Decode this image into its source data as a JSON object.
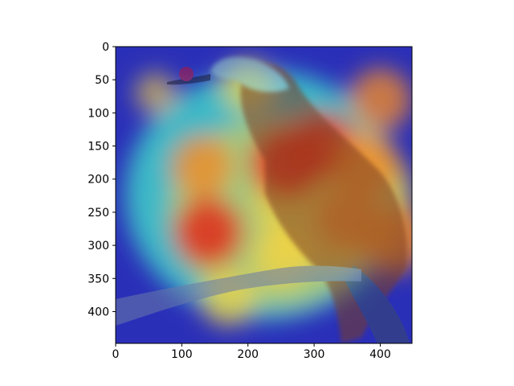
{
  "chart_data": {
    "type": "heatmap",
    "title": "",
    "xlabel": "",
    "ylabel": "",
    "xlim": [
      0,
      448
    ],
    "ylim": [
      448,
      0
    ],
    "x_ticks": [
      "0",
      "100",
      "200",
      "300",
      "400"
    ],
    "y_ticks": [
      "0",
      "50",
      "100",
      "150",
      "200",
      "250",
      "300",
      "350",
      "400"
    ],
    "colormap": "jet",
    "image_content": "bird perched on branch with red heatmap overlay",
    "hotspots": [
      {
        "x": 60,
        "y": 70,
        "intensity": 0.25
      },
      {
        "x": 260,
        "y": 175,
        "intensity": 0.95
      },
      {
        "x": 310,
        "y": 150,
        "intensity": 0.85
      },
      {
        "x": 380,
        "y": 180,
        "intensity": 0.75
      },
      {
        "x": 140,
        "y": 280,
        "intensity": 0.85
      },
      {
        "x": 130,
        "y": 180,
        "intensity": 0.7
      },
      {
        "x": 400,
        "y": 80,
        "intensity": 0.7
      },
      {
        "x": 350,
        "y": 260,
        "intensity": 0.7
      },
      {
        "x": 420,
        "y": 290,
        "intensity": 0.8
      },
      {
        "x": 250,
        "y": 320,
        "intensity": 0.6
      },
      {
        "x": 200,
        "y": 60,
        "intensity": 0.5
      },
      {
        "x": 170,
        "y": 380,
        "intensity": 0.55
      }
    ]
  },
  "colors": {
    "background_blue": "#2a2fb8",
    "hot": "#e32b1a",
    "warm": "#f5d342",
    "cool": "#3fd0c9"
  }
}
